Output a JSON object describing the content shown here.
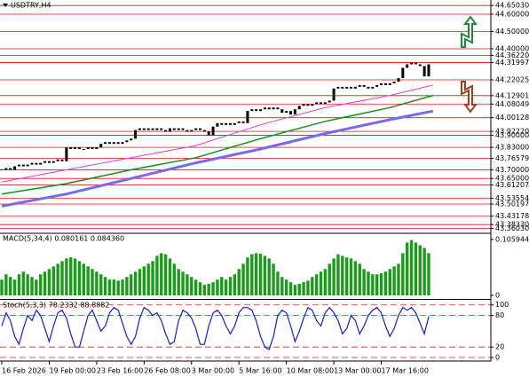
{
  "chart_data": [
    {
      "type": "candlestick",
      "title": "USDTRY,H4",
      "color": "#000000",
      "close": [
        43.7,
        43.71,
        43.7,
        43.72,
        43.73,
        43.72,
        43.73,
        43.74,
        43.73,
        43.74,
        43.75,
        43.74,
        43.75,
        43.76,
        43.75,
        43.83,
        43.82,
        43.83,
        43.82,
        43.82,
        43.83,
        43.82,
        43.83,
        43.85,
        43.86,
        43.85,
        43.86,
        43.85,
        43.86,
        43.87,
        43.88,
        43.93,
        43.94,
        43.93,
        43.94,
        43.93,
        43.94,
        43.93,
        43.92,
        43.94,
        43.93,
        43.94,
        43.93,
        43.92,
        43.93,
        43.94,
        43.93,
        43.92,
        43.9,
        43.95,
        43.97,
        43.96,
        43.97,
        43.96,
        43.97,
        43.98,
        43.97,
        44.04,
        44.05,
        44.04,
        44.05,
        44.06,
        44.05,
        44.06,
        44.05,
        44.03,
        44.04,
        44.02,
        44.05,
        44.07,
        44.08,
        44.07,
        44.08,
        44.09,
        44.08,
        44.09,
        44.1,
        44.17,
        44.18,
        44.17,
        44.18,
        44.17,
        44.18,
        44.19,
        44.18,
        44.17,
        44.18,
        44.19,
        44.2,
        44.19,
        44.2,
        44.21,
        44.23,
        44.29,
        44.31,
        44.32,
        44.31,
        44.3,
        44.24,
        44.31
      ],
      "series": [
        {
          "color": "#e040e0",
          "width": 1,
          "x": [
            0,
            15,
            30,
            45,
            60,
            75,
            90,
            100
          ],
          "values": [
            43.63,
            43.7,
            43.77,
            43.84,
            43.96,
            44.06,
            44.13,
            44.19
          ]
        },
        {
          "color": "#1a8c1a",
          "width": 1.5,
          "x": [
            0,
            15,
            30,
            45,
            60,
            75,
            90,
            100
          ],
          "values": [
            43.56,
            43.62,
            43.7,
            43.77,
            43.88,
            43.98,
            44.06,
            44.13
          ]
        },
        {
          "color": "#7b68ee",
          "width": 3,
          "x": [
            0,
            15,
            30,
            45,
            60,
            75,
            90,
            100
          ],
          "values": [
            43.49,
            43.56,
            43.65,
            43.74,
            43.82,
            43.91,
            43.99,
            44.04
          ]
        }
      ],
      "xlim": [
        0,
        113
      ],
      "xticks": [
        {
          "value": 0,
          "label": "16 Feb 2026"
        },
        {
          "value": 11,
          "label": "19 Feb 00:00"
        },
        {
          "value": 22,
          "label": "23 Feb 16:00"
        },
        {
          "value": 33,
          "label": "26 Feb 08:00"
        },
        {
          "value": 44,
          "label": "3 Mar 00:00"
        },
        {
          "value": 55,
          "label": "5 Mar 16:00"
        },
        {
          "value": 66,
          "label": "10 Mar 08:00"
        },
        {
          "value": 77,
          "label": "13 Mar 00:00"
        },
        {
          "value": 88,
          "label": "17 Mar 16:00"
        }
      ],
      "ylim": [
        43.338,
        44.682
      ],
      "yticks": [
        {
          "value": 44.6503,
          "label": "44.65030"
        },
        {
          "value": 44.6,
          "label": "44.60000"
        },
        {
          "value": 44.5,
          "label": "44.50000"
        },
        {
          "value": 44.4,
          "label": "44.40000"
        },
        {
          "value": 44.3622,
          "label": "44.36220"
        },
        {
          "value": 44.31997,
          "label": "44.31997"
        },
        {
          "value": 44.22025,
          "label": "44.22025"
        },
        {
          "value": 44.12901,
          "label": "44.12901"
        },
        {
          "value": 44.08049,
          "label": "44.08049"
        },
        {
          "value": 44.00128,
          "label": "44.00128"
        },
        {
          "value": 43.9222,
          "label": "43.92220"
        },
        {
          "value": 43.9,
          "label": "43.90000"
        },
        {
          "value": 43.83,
          "label": "43.83000"
        },
        {
          "value": 43.76579,
          "label": "43.76579"
        },
        {
          "value": 43.7,
          "label": "43.70000"
        },
        {
          "value": 43.65,
          "label": "43.65000"
        },
        {
          "value": 43.61207,
          "label": "43.61207"
        },
        {
          "value": 43.53554,
          "label": "43.53554"
        },
        {
          "value": 43.50197,
          "label": "43.50197"
        },
        {
          "value": 43.43178,
          "label": "43.43178"
        },
        {
          "value": 43.3833,
          "label": "43.38330"
        },
        {
          "value": 43.3603,
          "label": "43.36030"
        }
      ],
      "grid": true,
      "grid_color": "#e01010"
    },
    {
      "type": "bar",
      "title": "MACD(5,34,4) 0.080161 0.084360",
      "color": "#1a9c1a",
      "values": [
        0.03,
        0.04,
        0.035,
        0.03,
        0.04,
        0.045,
        0.04,
        0.035,
        0.03,
        0.04,
        0.045,
        0.05,
        0.055,
        0.06,
        0.065,
        0.07,
        0.072,
        0.07,
        0.065,
        0.06,
        0.055,
        0.05,
        0.045,
        0.04,
        0.035,
        0.03,
        0.03,
        0.028,
        0.03,
        0.035,
        0.04,
        0.045,
        0.05,
        0.055,
        0.06,
        0.065,
        0.075,
        0.08,
        0.078,
        0.07,
        0.06,
        0.05,
        0.045,
        0.04,
        0.035,
        0.03,
        0.025,
        0.02,
        0.022,
        0.025,
        0.03,
        0.035,
        0.03,
        0.035,
        0.04,
        0.05,
        0.06,
        0.072,
        0.078,
        0.08,
        0.079,
        0.075,
        0.07,
        0.06,
        0.045,
        0.035,
        0.03,
        0.025,
        0.02,
        0.022,
        0.025,
        0.028,
        0.035,
        0.04,
        0.045,
        0.05,
        0.06,
        0.07,
        0.078,
        0.075,
        0.072,
        0.07,
        0.065,
        0.06,
        0.05,
        0.045,
        0.04,
        0.04,
        0.042,
        0.045,
        0.05,
        0.055,
        0.06,
        0.08,
        0.1,
        0.105,
        0.1,
        0.095,
        0.09,
        0.08
      ],
      "ylim": [
        -0.005,
        0.116
      ],
      "yticks": [
        0.105944,
        0
      ]
    },
    {
      "type": "line",
      "title": "Stoch(5,3,3) 78.2332 88.8882",
      "color": "#1c1cc8",
      "values": [
        60,
        85,
        70,
        40,
        25,
        55,
        80,
        70,
        90,
        80,
        55,
        30,
        60,
        85,
        90,
        75,
        45,
        20,
        20,
        50,
        80,
        90,
        70,
        50,
        60,
        85,
        95,
        90,
        65,
        40,
        25,
        40,
        75,
        95,
        90,
        80,
        85,
        70,
        45,
        25,
        30,
        70,
        90,
        85,
        75,
        55,
        25,
        25,
        60,
        85,
        90,
        80,
        60,
        45,
        60,
        85,
        95,
        95,
        90,
        70,
        40,
        20,
        15,
        40,
        80,
        90,
        85,
        60,
        30,
        50,
        75,
        95,
        90,
        70,
        60,
        85,
        95,
        85,
        70,
        45,
        55,
        80,
        70,
        45,
        60,
        80,
        90,
        95,
        85,
        60,
        40,
        55,
        80,
        95,
        90,
        95,
        85,
        65,
        45,
        78
      ],
      "ylim": [
        -5,
        108
      ],
      "yticks": [
        100,
        80,
        20,
        0
      ],
      "level_color": "#d02020"
    }
  ]
}
